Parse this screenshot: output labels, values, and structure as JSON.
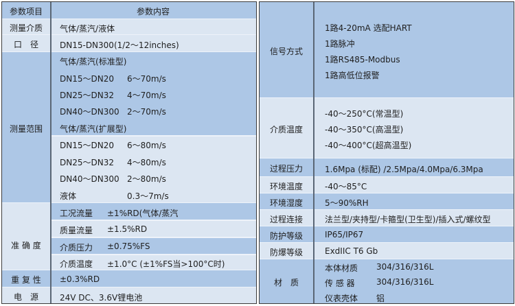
{
  "colors": {
    "dark_row": "#adc7e6",
    "light_row": "#dce6f2",
    "divider": "#5a6675"
  },
  "left_table": {
    "header": {
      "label": "参数项目",
      "content": "参数内容"
    },
    "sections": [
      {
        "label": "测量介质",
        "blocks": [
          {
            "shade": "light",
            "lines": [
              [
                "气体/蒸汽/液体"
              ]
            ]
          }
        ]
      },
      {
        "label": "口　径",
        "blocks": [
          {
            "shade": "light",
            "lines": [
              [
                "DN15-DN300(1/2～12inches)"
              ]
            ]
          }
        ]
      },
      {
        "label": "测量范围",
        "blocks": [
          {
            "shade": "dark",
            "lines": [
              [
                "气体/蒸汽(标准型)"
              ],
              [
                "DN15～DN20",
                "6～70m/s"
              ],
              [
                "DN25～DN32",
                "4～70m/s"
              ],
              [
                "DN40～DN300",
                "2～70m/s"
              ],
              [
                "气体/蒸汽(扩展型)"
              ]
            ]
          },
          {
            "shade": "light",
            "lines": [
              [
                "DN15～DN20",
                "6～80m/s"
              ],
              [
                "DN25～DN32",
                "4～80m/s"
              ],
              [
                "DN40～DN300",
                "2～80m/s"
              ],
              [
                "液体",
                "0.3～7m/s"
              ]
            ]
          }
        ]
      },
      {
        "label": "准 确 度",
        "blocks": [
          {
            "shade": "dark",
            "lines": [
              [
                "工况流量",
                "±1%RD(气体/蒸汽"
              ]
            ]
          },
          {
            "shade": "light",
            "lines": [
              [
                "质量流量",
                "±1.5%RD"
              ]
            ]
          },
          {
            "shade": "dark",
            "lines": [
              [
                "介质压力",
                "±0.75%FS"
              ]
            ]
          },
          {
            "shade": "light",
            "lines": [
              [
                "介质温度",
                "±1.0°C (±1%FS当>100°C时)"
              ]
            ]
          }
        ]
      },
      {
        "label": "重 复 性",
        "blocks": [
          {
            "shade": "dark",
            "lines": [
              [
                "±0.3%RD"
              ]
            ]
          }
        ]
      },
      {
        "label": "电　源",
        "blocks": [
          {
            "shade": "light",
            "lines": [
              [
                "24V DC、3.6V锂电池"
              ]
            ]
          }
        ]
      }
    ]
  },
  "right_table": {
    "sections": [
      {
        "label": "信号方式",
        "blocks": [
          {
            "shade": "dark",
            "lines": [
              [
                "1路4-20mA 选配HART"
              ],
              [
                "1路脉冲"
              ],
              [
                "1路RS485-Modbus"
              ],
              [
                "1路高低位报警"
              ]
            ]
          }
        ]
      },
      {
        "label": "介质温度",
        "blocks": [
          {
            "shade": "light",
            "lines": [
              [
                "-40～250°C(常温型)"
              ],
              [
                "-40～350°C(高温型)"
              ],
              [
                "-40～400°C(超高温型)"
              ]
            ]
          }
        ]
      },
      {
        "label": "过程压力",
        "blocks": [
          {
            "shade": "dark",
            "lines": [
              [
                "1.6Mpa (标配) /2.5Mpa/4.0Mpa/6.3Mpa"
              ]
            ]
          }
        ]
      },
      {
        "label": "环境温度",
        "blocks": [
          {
            "shade": "light",
            "lines": [
              [
                "-40～85°C"
              ]
            ]
          }
        ]
      },
      {
        "label": "环境湿度",
        "blocks": [
          {
            "shade": "dark",
            "lines": [
              [
                "5～90%RH"
              ]
            ]
          }
        ]
      },
      {
        "label": "过程连接",
        "blocks": [
          {
            "shade": "light",
            "lines": [
              [
                "法兰型/夹持型/卡箍型(卫生型)/插入式/螺纹型"
              ]
            ]
          }
        ]
      },
      {
        "label": "防护等级",
        "blocks": [
          {
            "shade": "dark",
            "lines": [
              [
                "IP65/IP67"
              ]
            ]
          }
        ]
      },
      {
        "label": "防爆等级",
        "blocks": [
          {
            "shade": "light",
            "lines": [
              [
                "ExdIIC T6 Gb"
              ]
            ]
          }
        ]
      },
      {
        "label": "材　质",
        "blocks": [
          {
            "shade": "dark",
            "lines": [
              [
                "本体材质",
                "304/316/316L"
              ],
              [
                "传 感 器",
                "304/316/316L"
              ],
              [
                "仪表壳体",
                "铝"
              ]
            ]
          }
        ]
      }
    ]
  }
}
